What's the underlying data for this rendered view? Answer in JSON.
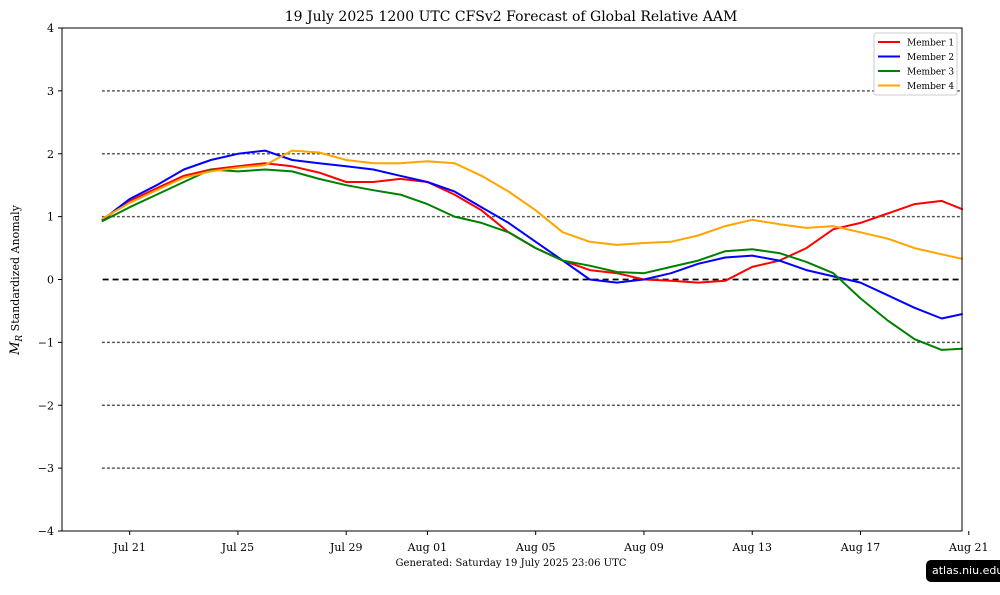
{
  "chart_data": {
    "type": "line",
    "title": "19  July  2025 1200 UTC   CFSv2 Forecast of Global Relative AAM",
    "ylabel_symbol": "M",
    "ylabel_subscript": "R",
    "ylabel_text": " Standardized Anomaly",
    "footer": "Generated: Saturday  19  July  2025  23:06 UTC",
    "watermark": "atlas.niu.edu",
    "ylim": [
      -4,
      4
    ],
    "yticks": [
      -4,
      -3,
      -2,
      -1,
      0,
      1,
      2,
      3,
      4
    ],
    "ytick_labels": [
      "−4",
      "−3",
      "−2",
      "−1",
      "0",
      "1",
      "2",
      "3",
      "4"
    ],
    "xlim": [
      -1.5,
      31.75
    ],
    "xticks": [
      {
        "x": 1,
        "label": "Jul 21"
      },
      {
        "x": 5,
        "label": "Jul 25"
      },
      {
        "x": 9,
        "label": "Jul 29"
      },
      {
        "x": 12,
        "label": "Aug 01"
      },
      {
        "x": 16,
        "label": "Aug 05"
      },
      {
        "x": 20,
        "label": "Aug 09"
      },
      {
        "x": 24,
        "label": "Aug 13"
      },
      {
        "x": 28,
        "label": "Aug 17"
      },
      {
        "x": 32,
        "label": "Aug 21"
      }
    ],
    "x_unit": "days after Jul 20 2025",
    "dotted_hlines": [
      -3,
      -2,
      -1,
      1,
      2,
      3
    ],
    "dashed_hlines": [
      0
    ],
    "legend_position": "top-right",
    "series": [
      {
        "name": "Member 1",
        "color": "#ff0000",
        "x": [
          0,
          1,
          2,
          3,
          4,
          5,
          6,
          7,
          8,
          9,
          10,
          11,
          12,
          13,
          14,
          15,
          16,
          17,
          18,
          19,
          20,
          21,
          22,
          23,
          24,
          25,
          26,
          27,
          28,
          29,
          30,
          31,
          31.75
        ],
        "y": [
          0.95,
          1.25,
          1.45,
          1.65,
          1.75,
          1.8,
          1.85,
          1.8,
          1.7,
          1.55,
          1.55,
          1.6,
          1.55,
          1.35,
          1.1,
          0.75,
          0.5,
          0.3,
          0.15,
          0.1,
          0.0,
          -0.02,
          -0.05,
          -0.02,
          0.2,
          0.3,
          0.5,
          0.8,
          0.9,
          1.05,
          1.2,
          1.25,
          1.12
        ]
      },
      {
        "name": "Member 2",
        "color": "#0000ff",
        "x": [
          0,
          1,
          2,
          3,
          4,
          5,
          6,
          7,
          8,
          9,
          10,
          11,
          12,
          13,
          14,
          15,
          16,
          17,
          18,
          19,
          20,
          21,
          22,
          23,
          24,
          25,
          26,
          27,
          28,
          29,
          30,
          31,
          31.75
        ],
        "y": [
          0.95,
          1.28,
          1.5,
          1.75,
          1.9,
          2.0,
          2.05,
          1.9,
          1.85,
          1.8,
          1.75,
          1.65,
          1.55,
          1.4,
          1.15,
          0.9,
          0.6,
          0.3,
          0.0,
          -0.05,
          0.0,
          0.1,
          0.25,
          0.35,
          0.38,
          0.3,
          0.15,
          0.05,
          -0.05,
          -0.25,
          -0.45,
          -0.62,
          -0.55
        ]
      },
      {
        "name": "Member 3",
        "color": "#008000",
        "x": [
          0,
          1,
          2,
          3,
          4,
          5,
          6,
          7,
          8,
          9,
          10,
          11,
          12,
          13,
          14,
          15,
          16,
          17,
          18,
          19,
          20,
          21,
          22,
          23,
          24,
          25,
          26,
          27,
          28,
          29,
          30,
          31,
          31.75
        ],
        "y": [
          0.93,
          1.15,
          1.35,
          1.55,
          1.75,
          1.72,
          1.75,
          1.72,
          1.6,
          1.5,
          1.42,
          1.35,
          1.2,
          1.0,
          0.9,
          0.75,
          0.5,
          0.3,
          0.22,
          0.12,
          0.1,
          0.2,
          0.3,
          0.45,
          0.48,
          0.42,
          0.28,
          0.1,
          -0.3,
          -0.65,
          -0.95,
          -1.12,
          -1.1
        ]
      },
      {
        "name": "Member 4",
        "color": "#ffa500",
        "x": [
          0,
          1,
          2,
          3,
          4,
          5,
          6,
          7,
          8,
          9,
          10,
          11,
          12,
          13,
          14,
          15,
          16,
          17,
          18,
          19,
          20,
          21,
          22,
          23,
          24,
          25,
          26,
          27,
          28,
          29,
          30,
          31,
          31.75
        ],
        "y": [
          0.97,
          1.22,
          1.42,
          1.62,
          1.72,
          1.78,
          1.82,
          2.05,
          2.02,
          1.9,
          1.85,
          1.85,
          1.88,
          1.85,
          1.65,
          1.4,
          1.1,
          0.75,
          0.6,
          0.55,
          0.58,
          0.6,
          0.7,
          0.85,
          0.95,
          0.88,
          0.82,
          0.85,
          0.75,
          0.65,
          0.5,
          0.4,
          0.33
        ]
      }
    ]
  }
}
